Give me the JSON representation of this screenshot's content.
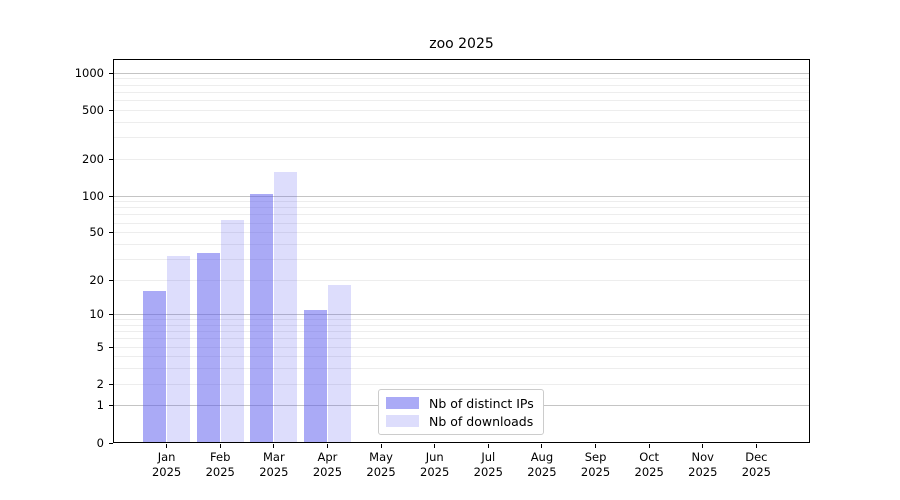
{
  "chart_data": {
    "type": "bar",
    "title": "zoo 2025",
    "y_scale_type": "log10(value+1)",
    "ylim": [
      0,
      1300
    ],
    "grid": true,
    "y_ticks": [
      0,
      1,
      2,
      5,
      10,
      20,
      50,
      100,
      200,
      500,
      1000
    ],
    "y_tick_labels": [
      "0",
      "1",
      "2",
      "5",
      "10",
      "20",
      "50",
      "100",
      "200",
      "500",
      "1000"
    ],
    "major_grid_values": [
      1,
      10,
      100,
      1000
    ],
    "categories": [
      {
        "month": "Jan",
        "year": "2025"
      },
      {
        "month": "Feb",
        "year": "2025"
      },
      {
        "month": "Mar",
        "year": "2025"
      },
      {
        "month": "Apr",
        "year": "2025"
      },
      {
        "month": "May",
        "year": "2025"
      },
      {
        "month": "Jun",
        "year": "2025"
      },
      {
        "month": "Jul",
        "year": "2025"
      },
      {
        "month": "Aug",
        "year": "2025"
      },
      {
        "month": "Sep",
        "year": "2025"
      },
      {
        "month": "Oct",
        "year": "2025"
      },
      {
        "month": "Nov",
        "year": "2025"
      },
      {
        "month": "Dec",
        "year": "2025"
      }
    ],
    "series": [
      {
        "name": "Nb of distinct IPs",
        "color": "rgba(85,85,238,0.5)",
        "values": [
          16,
          34,
          104,
          11,
          null,
          null,
          null,
          null,
          null,
          null,
          null,
          null
        ]
      },
      {
        "name": "Nb of downloads",
        "color": "rgba(85,85,238,0.2)",
        "values": [
          32,
          63,
          157,
          18,
          null,
          null,
          null,
          null,
          null,
          null,
          null,
          null
        ]
      }
    ],
    "legend": {
      "position": "inside-bottom-center-left"
    },
    "colors": {
      "minor_grid": "#ededed",
      "major_grid": "#c4c4c4",
      "spine": "#000000",
      "background": "#ffffff",
      "text": "#000000"
    }
  }
}
